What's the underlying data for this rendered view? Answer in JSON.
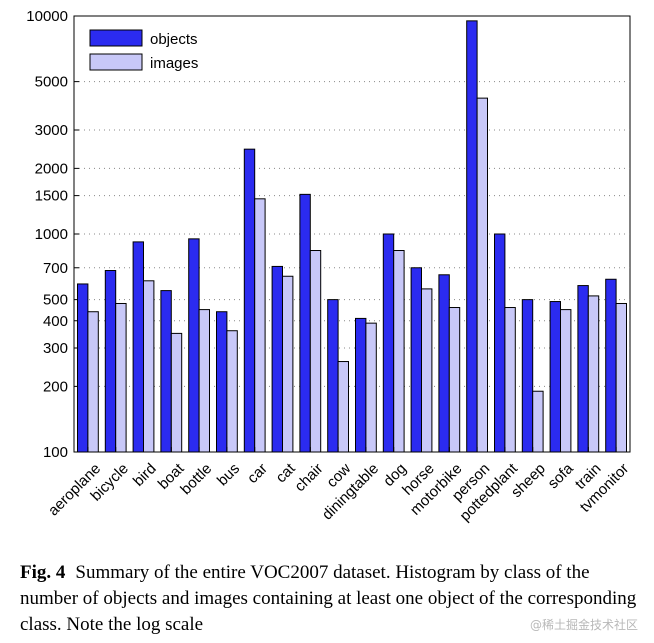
{
  "chart_data": {
    "type": "bar",
    "scale": "log",
    "categories": [
      "aeroplane",
      "bicycle",
      "bird",
      "boat",
      "bottle",
      "bus",
      "car",
      "cat",
      "chair",
      "cow",
      "diningtable",
      "dog",
      "horse",
      "motorbike",
      "person",
      "pottedplant",
      "sheep",
      "sofa",
      "train",
      "tvmonitor"
    ],
    "series": [
      {
        "name": "objects",
        "color": "#2b2bf0",
        "values": [
          590,
          680,
          920,
          550,
          950,
          440,
          2450,
          710,
          1520,
          500,
          410,
          1000,
          700,
          650,
          9500,
          1000,
          500,
          490,
          580,
          620
        ]
      },
      {
        "name": "images",
        "color": "#c8c8f8",
        "values": [
          440,
          480,
          610,
          350,
          450,
          360,
          1450,
          640,
          840,
          260,
          390,
          840,
          560,
          460,
          4200,
          460,
          190,
          450,
          520,
          480
        ]
      }
    ],
    "yticks": [
      100,
      200,
      300,
      400,
      500,
      700,
      1000,
      1500,
      2000,
      3000,
      5000,
      10000
    ],
    "ylim": [
      100,
      10000
    ],
    "grid": true,
    "legend_position": "top-left"
  },
  "caption": {
    "label": "Fig. 4",
    "text": "Summary of the entire VOC2007 dataset. Histogram by class of the number of objects and images containing at least one object of the corresponding class. Note the log scale"
  },
  "watermark": "@稀土掘金技术社区"
}
